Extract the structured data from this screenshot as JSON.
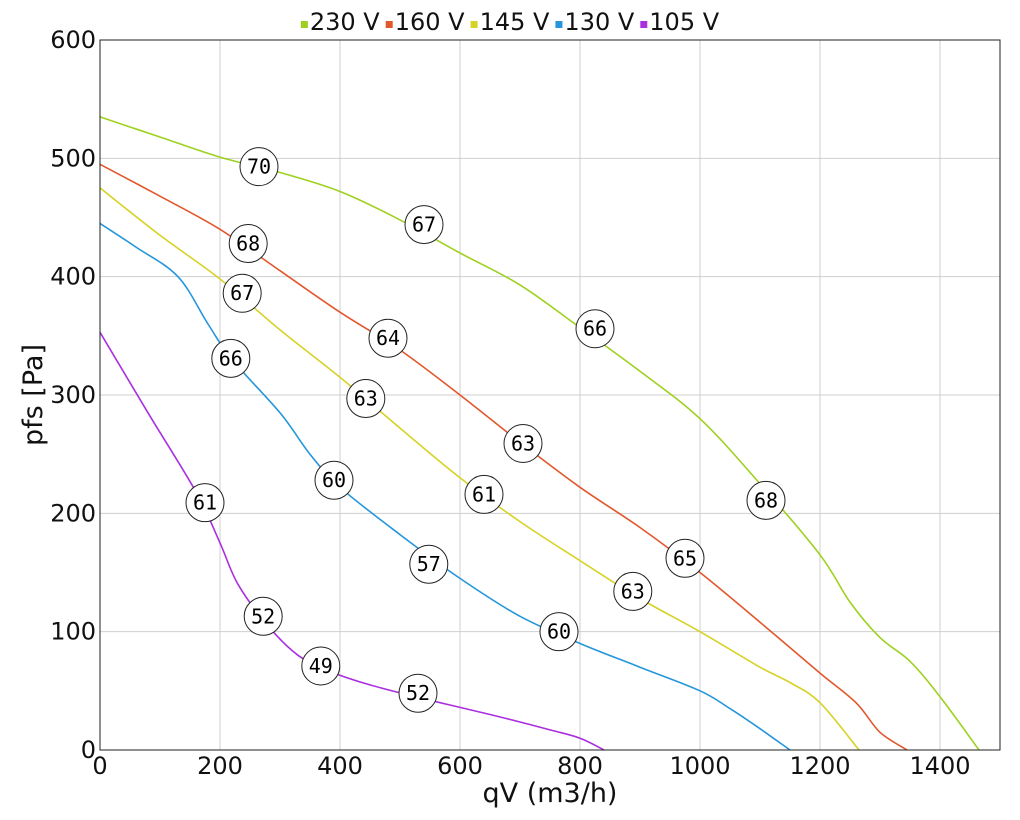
{
  "chart_data": {
    "type": "line",
    "xlabel": "qV (m3/h)",
    "ylabel": "pfs [Pa]",
    "xlim": [
      0,
      1500
    ],
    "ylim": [
      0,
      600
    ],
    "x_ticks": [
      "0",
      "200",
      "400",
      "600",
      "800",
      "1000",
      "1200",
      "1400"
    ],
    "y_ticks": [
      "0",
      "100",
      "200",
      "300",
      "400",
      "500",
      "600"
    ],
    "grid": true,
    "legend_position": "top",
    "series": [
      {
        "name": "230 V",
        "color": "#9ed11e",
        "points": [
          [
            0,
            535
          ],
          [
            100,
            518
          ],
          [
            200,
            501
          ],
          [
            300,
            488
          ],
          [
            400,
            472
          ],
          [
            500,
            448
          ],
          [
            600,
            420
          ],
          [
            700,
            393
          ],
          [
            800,
            357
          ],
          [
            900,
            320
          ],
          [
            1000,
            280
          ],
          [
            1100,
            225
          ],
          [
            1200,
            165
          ],
          [
            1250,
            125
          ],
          [
            1300,
            95
          ],
          [
            1350,
            75
          ],
          [
            1400,
            45
          ],
          [
            1465,
            0
          ]
        ],
        "markers": [
          {
            "x": 265,
            "y": 493,
            "label": "70"
          },
          {
            "x": 540,
            "y": 444,
            "label": "67"
          },
          {
            "x": 825,
            "y": 356,
            "label": "66"
          },
          {
            "x": 1110,
            "y": 211,
            "label": "68"
          }
        ]
      },
      {
        "name": "160 V",
        "color": "#e2572b",
        "points": [
          [
            0,
            495
          ],
          [
            100,
            468
          ],
          [
            200,
            440
          ],
          [
            300,
            405
          ],
          [
            400,
            370
          ],
          [
            500,
            338
          ],
          [
            600,
            300
          ],
          [
            700,
            260
          ],
          [
            800,
            222
          ],
          [
            900,
            188
          ],
          [
            1000,
            150
          ],
          [
            1100,
            108
          ],
          [
            1200,
            65
          ],
          [
            1260,
            40
          ],
          [
            1300,
            15
          ],
          [
            1345,
            0
          ]
        ],
        "markers": [
          {
            "x": 247,
            "y": 428,
            "label": "68"
          },
          {
            "x": 480,
            "y": 348,
            "label": "64"
          },
          {
            "x": 705,
            "y": 259,
            "label": "63"
          },
          {
            "x": 975,
            "y": 162,
            "label": "65"
          }
        ]
      },
      {
        "name": "145 V",
        "color": "#d7d226",
        "points": [
          [
            0,
            475
          ],
          [
            100,
            435
          ],
          [
            200,
            398
          ],
          [
            300,
            355
          ],
          [
            400,
            315
          ],
          [
            500,
            272
          ],
          [
            600,
            230
          ],
          [
            700,
            193
          ],
          [
            800,
            160
          ],
          [
            900,
            128
          ],
          [
            1000,
            100
          ],
          [
            1100,
            70
          ],
          [
            1150,
            57
          ],
          [
            1200,
            40
          ],
          [
            1265,
            0
          ]
        ],
        "markers": [
          {
            "x": 237,
            "y": 386,
            "label": "67"
          },
          {
            "x": 443,
            "y": 297,
            "label": "63"
          },
          {
            "x": 640,
            "y": 216,
            "label": "61"
          },
          {
            "x": 888,
            "y": 134,
            "label": "63"
          }
        ]
      },
      {
        "name": "130 V",
        "color": "#2596db",
        "points": [
          [
            0,
            445
          ],
          [
            60,
            425
          ],
          [
            130,
            400
          ],
          [
            180,
            360
          ],
          [
            220,
            330
          ],
          [
            300,
            285
          ],
          [
            350,
            250
          ],
          [
            400,
            222
          ],
          [
            500,
            182
          ],
          [
            600,
            145
          ],
          [
            700,
            113
          ],
          [
            800,
            90
          ],
          [
            900,
            70
          ],
          [
            1000,
            50
          ],
          [
            1050,
            35
          ],
          [
            1100,
            18
          ],
          [
            1150,
            0
          ]
        ],
        "markers": [
          {
            "x": 218,
            "y": 331,
            "label": "66"
          },
          {
            "x": 390,
            "y": 228,
            "label": "60"
          },
          {
            "x": 548,
            "y": 157,
            "label": "57"
          },
          {
            "x": 765,
            "y": 100,
            "label": "60"
          }
        ]
      },
      {
        "name": "105 V",
        "color": "#aa2fe0",
        "points": [
          [
            0,
            353
          ],
          [
            80,
            285
          ],
          [
            160,
            218
          ],
          [
            200,
            175
          ],
          [
            230,
            140
          ],
          [
            280,
            105
          ],
          [
            330,
            80
          ],
          [
            380,
            67
          ],
          [
            450,
            55
          ],
          [
            550,
            42
          ],
          [
            650,
            30
          ],
          [
            750,
            17
          ],
          [
            800,
            10
          ],
          [
            840,
            0
          ]
        ],
        "markers": [
          {
            "x": 175,
            "y": 209,
            "label": "61"
          },
          {
            "x": 272,
            "y": 113,
            "label": "52"
          },
          {
            "x": 368,
            "y": 71,
            "label": "49"
          },
          {
            "x": 530,
            "y": 48,
            "label": "52"
          }
        ]
      }
    ]
  }
}
